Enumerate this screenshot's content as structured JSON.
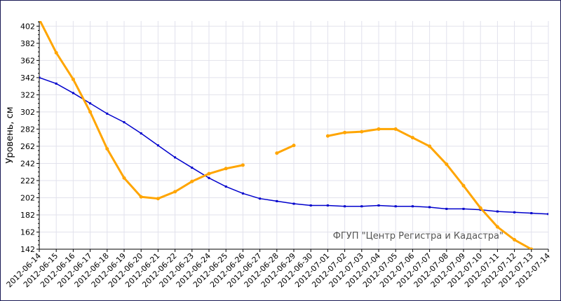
{
  "chart_data": {
    "type": "line",
    "ylabel": "Уровень, см",
    "xlabel": "",
    "ylim": [
      142,
      408
    ],
    "yticks": [
      142,
      162,
      182,
      202,
      222,
      242,
      262,
      282,
      302,
      322,
      342,
      362,
      382,
      402
    ],
    "categories": [
      "2012-06-14",
      "2012-06-15",
      "2012-06-16",
      "2012-06-17",
      "2012-06-18",
      "2012-06-19",
      "2012-06-20",
      "2012-06-21",
      "2012-06-22",
      "2012-06-23",
      "2012-06-24",
      "2012-06-25",
      "2012-06-26",
      "2012-06-27",
      "2012-06-28",
      "2012-06-29",
      "2012-06-30",
      "2012-07-01",
      "2012-07-02",
      "2012-07-03",
      "2012-07-04",
      "2012-07-05",
      "2012-07-06",
      "2012-07-07",
      "2012-07-08",
      "2012-07-09",
      "2012-07-10",
      "2012-07-11",
      "2012-07-12",
      "2012-07-13",
      "2012-07-14"
    ],
    "grid": true,
    "annotation": "ФГУП \"Центр Регистра и Кадастра\"",
    "series": [
      {
        "color": "#0000cc",
        "values": [
          342,
          335,
          324,
          312,
          300,
          290,
          277,
          263,
          249,
          237,
          225,
          215,
          207,
          201,
          198,
          195,
          193,
          193,
          192,
          192,
          193,
          192,
          192,
          191,
          189,
          189,
          188,
          186,
          185,
          184,
          183
        ]
      },
      {
        "color": "#ffa500",
        "segments": [
          {
            "x": [
              0,
              1,
              2,
              3,
              4,
              5,
              6,
              7,
              8,
              9,
              10,
              11,
              12
            ],
            "y": [
              410,
              371,
              340,
              302,
              259,
              225,
              203,
              201,
              209,
              221,
              230,
              236,
              240
            ]
          },
          {
            "x": [
              14,
              15
            ],
            "y": [
              254,
              263
            ]
          },
          {
            "x": [
              17,
              18,
              19,
              20,
              21,
              22,
              23,
              24,
              25,
              26,
              27,
              28,
              29
            ],
            "y": [
              274,
              278,
              279,
              282,
              282,
              272,
              262,
              241,
              216,
              190,
              168,
              153,
              142
            ]
          }
        ]
      }
    ]
  }
}
